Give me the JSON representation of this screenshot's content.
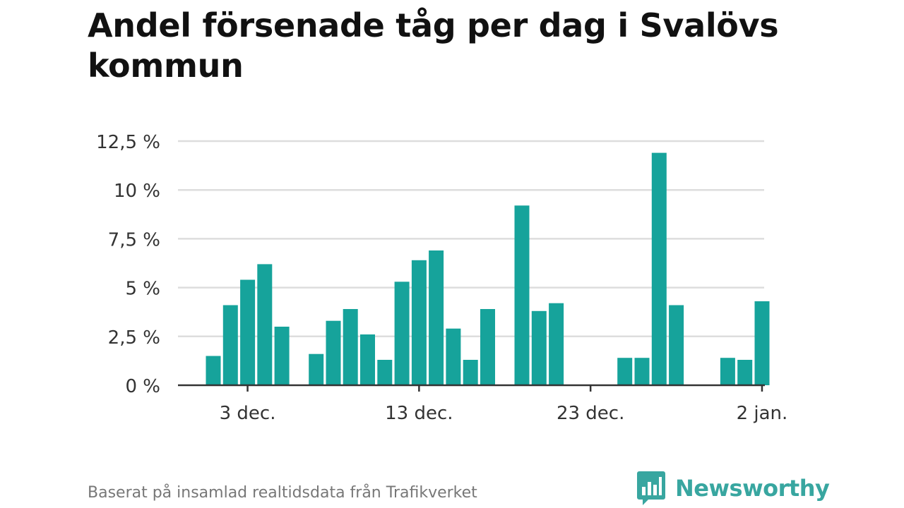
{
  "header": {
    "title": "Andel försenade tåg per dag i Svalövs kommun"
  },
  "footer": {
    "source": "Baserat på insamlad realtidsdata från Trafikverket",
    "brand": "Newsworthy"
  },
  "colors": {
    "bar": "#16a39b",
    "grid": "#dddddd",
    "axis": "#333333",
    "brand": "#38a6a0"
  },
  "icons": {
    "brand_logo": "bar-chart-speech-bubble-icon"
  },
  "chart_data": {
    "type": "bar",
    "title": "Andel försenade tåg per dag i Svalövs kommun",
    "xlabel": "",
    "ylabel": "",
    "x_start": "29 nov.",
    "x_end": "3 jan.",
    "ylim": [
      0,
      12.5
    ],
    "y_ticks": [
      0,
      2.5,
      5,
      7.5,
      10,
      12.5
    ],
    "y_tick_labels": [
      "0 %",
      "2,5 %",
      "5 %",
      "7,5 %",
      "10 %",
      "12,5 %"
    ],
    "x_ticks": [
      {
        "date": "3 dec.",
        "day_index": 4
      },
      {
        "date": "13 dec.",
        "day_index": 14
      },
      {
        "date": "23 dec.",
        "day_index": 24
      },
      {
        "date": "2 jan.",
        "day_index": 34
      }
    ],
    "grid": true,
    "bars": [
      {
        "date": "1 dec.",
        "value": 1.5
      },
      {
        "date": "2 dec.",
        "value": 4.1
      },
      {
        "date": "3 dec.",
        "value": 5.4
      },
      {
        "date": "4 dec.",
        "value": 6.2
      },
      {
        "date": "5 dec.",
        "value": 3.0
      },
      {
        "date": "7 dec.",
        "value": 1.6
      },
      {
        "date": "8 dec.",
        "value": 3.3
      },
      {
        "date": "9 dec.",
        "value": 3.9
      },
      {
        "date": "10 dec.",
        "value": 2.6
      },
      {
        "date": "11 dec.",
        "value": 1.3
      },
      {
        "date": "12 dec.",
        "value": 5.3
      },
      {
        "date": "13 dec.",
        "value": 6.4
      },
      {
        "date": "14 dec.",
        "value": 6.9
      },
      {
        "date": "15 dec.",
        "value": 2.9
      },
      {
        "date": "16 dec.",
        "value": 1.3
      },
      {
        "date": "17 dec.",
        "value": 3.9
      },
      {
        "date": "19 dec.",
        "value": 9.2
      },
      {
        "date": "20 dec.",
        "value": 3.8
      },
      {
        "date": "21 dec.",
        "value": 4.2
      },
      {
        "date": "25 dec.",
        "value": 1.4
      },
      {
        "date": "26 dec.",
        "value": 1.4
      },
      {
        "date": "27 dec.",
        "value": 11.9
      },
      {
        "date": "28 dec.",
        "value": 4.1
      },
      {
        "date": "31 dec.",
        "value": 1.4
      },
      {
        "date": "1 jan.",
        "value": 1.3
      },
      {
        "date": "2 jan.",
        "value": 4.3
      }
    ]
  }
}
